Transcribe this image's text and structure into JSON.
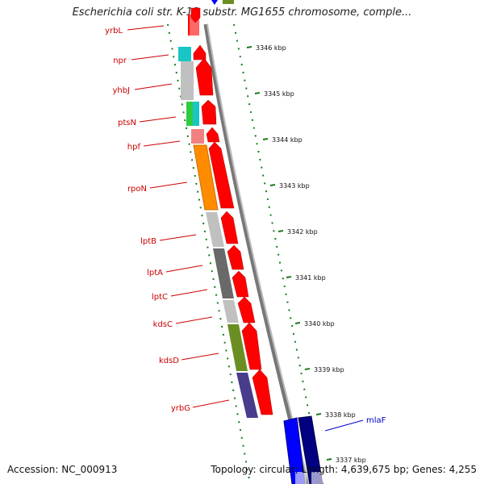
{
  "title": "Escherichia coli str. K-12 substr. MG1655 chromosome, comple...",
  "footer": {
    "accession": "Accession: NC_000913",
    "summary": "Topology: circular; Length: 4,639,675 bp; Genes: 4,255"
  },
  "ticks": [
    "3346 kbp",
    "3345 kbp",
    "3344 kbp",
    "3343 kbp",
    "3342 kbp",
    "3341 kbp",
    "3340 kbp",
    "3339 kbp",
    "3338 kbp",
    "3337 kbp"
  ],
  "genes_left": [
    "yrbL",
    "npr",
    "yhbJ",
    "ptsN",
    "hpf",
    "rpoN",
    "lptB",
    "lptA",
    "lptC",
    "kdsC",
    "kdsD",
    "yrbG"
  ],
  "genes_right": [
    "mlaF"
  ],
  "colors": {
    "forward": "#ff0000",
    "reverse": "#0000cc",
    "label_left": "#cc0000",
    "label_right": "#0000cc",
    "tick": "#1a7a1a"
  }
}
